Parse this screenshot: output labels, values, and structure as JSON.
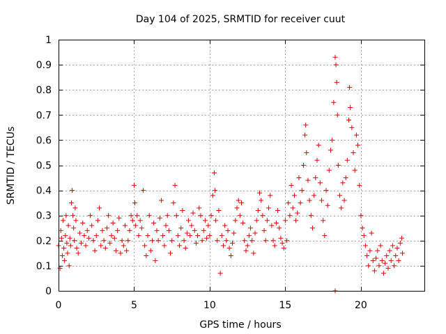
{
  "chart_data": {
    "type": "scatter",
    "title": "Day 104 of 2025, SRMTID for receiver cuut",
    "xlabel": "GPS time / hours",
    "ylabel": "SRMTID / TECUs",
    "xlim": [
      0,
      24.2
    ],
    "ylim": [
      0,
      1
    ],
    "xticks": [
      0,
      5,
      10,
      15,
      20
    ],
    "xtick_labels": [
      "0",
      "5",
      "10",
      "15",
      "20"
    ],
    "yticks": [
      0,
      0.1,
      0.2,
      0.3,
      0.4,
      0.5,
      0.6,
      0.7,
      0.8,
      0.9,
      1
    ],
    "ytick_labels": [
      "0",
      "0.1",
      "0.2",
      "0.3",
      "0.4",
      "0.5",
      "0.6",
      "0.7",
      "0.8",
      "0.9",
      "1"
    ],
    "grid": true,
    "marker": "+",
    "series_color": "#e00000",
    "series": [
      {
        "name": "SRMTID",
        "points": [
          [
            0.0,
            0.18
          ],
          [
            0.1,
            0.09
          ],
          [
            0.15,
            0.24
          ],
          [
            0.2,
            0.21
          ],
          [
            0.25,
            0.14
          ],
          [
            0.3,
            0.28
          ],
          [
            0.35,
            0.17
          ],
          [
            0.4,
            0.12
          ],
          [
            0.45,
            0.22
          ],
          [
            0.5,
            0.3
          ],
          [
            0.55,
            0.19
          ],
          [
            0.6,
            0.15
          ],
          [
            0.65,
            0.26
          ],
          [
            0.7,
            0.1
          ],
          [
            0.75,
            0.21
          ],
          [
            0.8,
            0.18
          ],
          [
            0.85,
            0.35
          ],
          [
            0.9,
            0.4
          ],
          [
            0.95,
            0.3
          ],
          [
            1.0,
            0.25
          ],
          [
            1.05,
            0.2
          ],
          [
            1.1,
            0.33
          ],
          [
            1.15,
            0.28
          ],
          [
            1.2,
            0.17
          ],
          [
            1.3,
            0.15
          ],
          [
            1.4,
            0.23
          ],
          [
            1.5,
            0.19
          ],
          [
            1.6,
            0.27
          ],
          [
            1.7,
            0.22
          ],
          [
            1.8,
            0.18
          ],
          [
            1.9,
            0.24
          ],
          [
            2.0,
            0.21
          ],
          [
            2.1,
            0.3
          ],
          [
            2.2,
            0.26
          ],
          [
            2.3,
            0.2
          ],
          [
            2.4,
            0.16
          ],
          [
            2.5,
            0.22
          ],
          [
            2.6,
            0.28
          ],
          [
            2.7,
            0.33
          ],
          [
            2.8,
            0.18
          ],
          [
            2.9,
            0.24
          ],
          [
            3.0,
            0.2
          ],
          [
            3.1,
            0.17
          ],
          [
            3.2,
            0.25
          ],
          [
            3.3,
            0.3
          ],
          [
            3.4,
            0.19
          ],
          [
            3.5,
            0.22
          ],
          [
            3.6,
            0.27
          ],
          [
            3.7,
            0.21
          ],
          [
            3.8,
            0.16
          ],
          [
            3.9,
            0.24
          ],
          [
            4.0,
            0.29
          ],
          [
            4.1,
            0.15
          ],
          [
            4.2,
            0.2
          ],
          [
            4.3,
            0.18
          ],
          [
            4.4,
            0.26
          ],
          [
            4.5,
            0.16
          ],
          [
            4.6,
            0.2
          ],
          [
            4.7,
            0.24
          ],
          [
            4.8,
            0.3
          ],
          [
            4.9,
            0.28
          ],
          [
            5.0,
            0.42
          ],
          [
            5.05,
            0.35
          ],
          [
            5.1,
            0.26
          ],
          [
            5.2,
            0.3
          ],
          [
            5.3,
            0.22
          ],
          [
            5.4,
            0.28
          ],
          [
            5.5,
            0.25
          ],
          [
            5.6,
            0.4
          ],
          [
            5.7,
            0.18
          ],
          [
            5.8,
            0.14
          ],
          [
            5.9,
            0.22
          ],
          [
            6.0,
            0.3
          ],
          [
            6.1,
            0.16
          ],
          [
            6.2,
            0.2
          ],
          [
            6.3,
            0.27
          ],
          [
            6.4,
            0.12
          ],
          [
            6.5,
            0.24
          ],
          [
            6.6,
            0.2
          ],
          [
            6.7,
            0.29
          ],
          [
            6.8,
            0.36
          ],
          [
            6.9,
            0.22
          ],
          [
            7.0,
            0.18
          ],
          [
            7.1,
            0.26
          ],
          [
            7.2,
            0.3
          ],
          [
            7.3,
            0.24
          ],
          [
            7.4,
            0.15
          ],
          [
            7.5,
            0.2
          ],
          [
            7.6,
            0.35
          ],
          [
            7.7,
            0.42
          ],
          [
            7.8,
            0.3
          ],
          [
            7.9,
            0.22
          ],
          [
            8.0,
            0.18
          ],
          [
            8.1,
            0.25
          ],
          [
            8.2,
            0.32
          ],
          [
            8.3,
            0.2
          ],
          [
            8.4,
            0.17
          ],
          [
            8.5,
            0.23
          ],
          [
            8.6,
            0.28
          ],
          [
            8.7,
            0.22
          ],
          [
            8.8,
            0.26
          ],
          [
            8.9,
            0.31
          ],
          [
            9.0,
            0.24
          ],
          [
            9.1,
            0.19
          ],
          [
            9.2,
            0.22
          ],
          [
            9.3,
            0.33
          ],
          [
            9.4,
            0.3
          ],
          [
            9.5,
            0.2
          ],
          [
            9.6,
            0.24
          ],
          [
            9.7,
            0.28
          ],
          [
            9.8,
            0.21
          ],
          [
            9.9,
            0.26
          ],
          [
            10.0,
            0.22
          ],
          [
            10.1,
            0.3
          ],
          [
            10.2,
            0.38
          ],
          [
            10.3,
            0.47
          ],
          [
            10.35,
            0.4
          ],
          [
            10.4,
            0.28
          ],
          [
            10.5,
            0.2
          ],
          [
            10.6,
            0.32
          ],
          [
            10.7,
            0.07
          ],
          [
            10.8,
            0.22
          ],
          [
            10.9,
            0.18
          ],
          [
            11.0,
            0.26
          ],
          [
            11.1,
            0.2
          ],
          [
            11.2,
            0.24
          ],
          [
            11.3,
            0.17
          ],
          [
            11.4,
            0.14
          ],
          [
            11.5,
            0.19
          ],
          [
            11.6,
            0.23
          ],
          [
            11.7,
            0.28
          ],
          [
            11.8,
            0.33
          ],
          [
            11.9,
            0.36
          ],
          [
            12.0,
            0.3
          ],
          [
            12.1,
            0.35
          ],
          [
            12.2,
            0.27
          ],
          [
            12.3,
            0.2
          ],
          [
            12.4,
            0.16
          ],
          [
            12.5,
            0.18
          ],
          [
            12.6,
            0.22
          ],
          [
            12.7,
            0.25
          ],
          [
            12.8,
            0.2
          ],
          [
            12.9,
            0.15
          ],
          [
            13.0,
            0.23
          ],
          [
            13.1,
            0.28
          ],
          [
            13.2,
            0.32
          ],
          [
            13.3,
            0.39
          ],
          [
            13.4,
            0.36
          ],
          [
            13.5,
            0.3
          ],
          [
            13.6,
            0.24
          ],
          [
            13.7,
            0.2
          ],
          [
            13.8,
            0.28
          ],
          [
            13.9,
            0.33
          ],
          [
            14.0,
            0.38
          ],
          [
            14.1,
            0.26
          ],
          [
            14.2,
            0.2
          ],
          [
            14.3,
            0.18
          ],
          [
            14.4,
            0.27
          ],
          [
            14.5,
            0.32
          ],
          [
            14.6,
            0.25
          ],
          [
            14.7,
            0.21
          ],
          [
            14.8,
            0.19
          ],
          [
            14.9,
            0.17
          ],
          [
            15.0,
            0.28
          ],
          [
            15.1,
            0.2
          ],
          [
            15.2,
            0.35
          ],
          [
            15.3,
            0.3
          ],
          [
            15.4,
            0.42
          ],
          [
            15.5,
            0.33
          ],
          [
            15.6,
            0.38
          ],
          [
            15.7,
            0.28
          ],
          [
            15.8,
            0.31
          ],
          [
            15.9,
            0.45
          ],
          [
            16.0,
            0.35
          ],
          [
            16.1,
            0.4
          ],
          [
            16.2,
            0.5
          ],
          [
            16.3,
            0.62
          ],
          [
            16.35,
            0.66
          ],
          [
            16.4,
            0.55
          ],
          [
            16.5,
            0.44
          ],
          [
            16.6,
            0.36
          ],
          [
            16.7,
            0.3
          ],
          [
            16.8,
            0.25
          ],
          [
            16.9,
            0.38
          ],
          [
            17.0,
            0.45
          ],
          [
            17.1,
            0.52
          ],
          [
            17.2,
            0.58
          ],
          [
            17.3,
            0.43
          ],
          [
            17.4,
            0.36
          ],
          [
            17.5,
            0.28
          ],
          [
            17.6,
            0.22
          ],
          [
            17.7,
            0.4
          ],
          [
            17.8,
            0.34
          ],
          [
            17.9,
            0.48
          ],
          [
            18.0,
            0.56
          ],
          [
            18.1,
            0.6
          ],
          [
            18.2,
            0.75
          ],
          [
            18.3,
            0.93
          ],
          [
            18.35,
            0.9
          ],
          [
            18.4,
            0.83
          ],
          [
            18.45,
            0.7
          ],
          [
            18.5,
            0.5
          ],
          [
            18.6,
            0.38
          ],
          [
            18.7,
            0.33
          ],
          [
            18.8,
            0.43
          ],
          [
            18.9,
            0.36
          ],
          [
            19.0,
            0.45
          ],
          [
            19.1,
            0.52
          ],
          [
            19.2,
            0.68
          ],
          [
            19.25,
            0.81
          ],
          [
            19.3,
            0.73
          ],
          [
            19.4,
            0.65
          ],
          [
            19.5,
            0.55
          ],
          [
            19.6,
            0.48
          ],
          [
            19.7,
            0.62
          ],
          [
            19.8,
            0.58
          ],
          [
            19.9,
            0.42
          ],
          [
            20.0,
            0.3
          ],
          [
            20.1,
            0.25
          ],
          [
            20.2,
            0.22
          ],
          [
            20.3,
            0.18
          ],
          [
            20.4,
            0.14
          ],
          [
            20.5,
            0.1
          ],
          [
            20.6,
            0.16
          ],
          [
            20.7,
            0.23
          ],
          [
            20.8,
            0.12
          ],
          [
            20.9,
            0.08
          ],
          [
            21.0,
            0.13
          ],
          [
            21.1,
            0.16
          ],
          [
            21.2,
            0.1
          ],
          [
            21.3,
            0.18
          ],
          [
            21.4,
            0.12
          ],
          [
            21.5,
            0.07
          ],
          [
            21.6,
            0.11
          ],
          [
            21.7,
            0.14
          ],
          [
            21.8,
            0.09
          ],
          [
            21.9,
            0.16
          ],
          [
            22.0,
            0.12
          ],
          [
            22.1,
            0.18
          ],
          [
            22.2,
            0.1
          ],
          [
            22.3,
            0.14
          ],
          [
            22.4,
            0.17
          ],
          [
            22.5,
            0.12
          ],
          [
            22.6,
            0.19
          ],
          [
            22.7,
            0.21
          ],
          [
            22.75,
            0.15
          ],
          [
            18.3,
            0.0
          ]
        ]
      }
    ]
  }
}
